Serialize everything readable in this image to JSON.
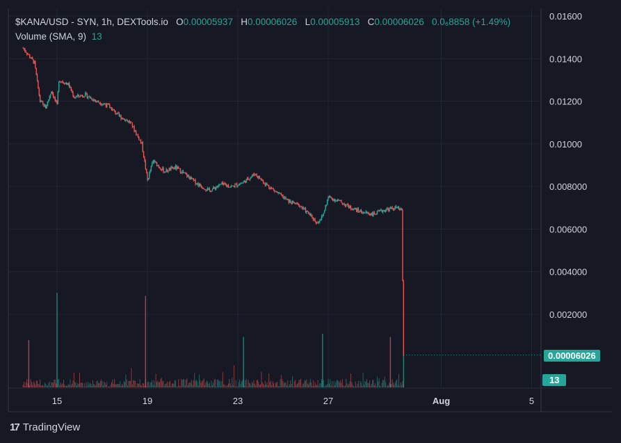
{
  "legend": {
    "symbol": "$KANA/USD - SYN, 1h, DEXTools.io",
    "o_label": "O",
    "o_value": "0.00005937",
    "h_label": "H",
    "h_value": "0.00006026",
    "l_label": "L",
    "l_value": "0.00005913",
    "c_label": "C",
    "c_value": "0.00006026",
    "change": "0.0₆8858 (+1.49%)",
    "volume_label": "Volume (SMA, 9)",
    "volume_value": "13"
  },
  "last_price_tag": "0.00006026",
  "last_volume_tag": "13",
  "branding": {
    "logo_text": "TradingView",
    "logo_mark": "17"
  },
  "colors": {
    "up": "#26a69a",
    "down": "#ef5350",
    "background": "#161823",
    "grid": "#232633"
  },
  "chart_data": {
    "type": "candlestick",
    "title": "$KANA/USD - SYN, 1h, DEXTools.io",
    "x_ticks": [
      "15",
      "19",
      "23",
      "27",
      "Aug",
      "5"
    ],
    "y_ticks": [
      "0.01600",
      "0.01400",
      "0.01200",
      "0.01000",
      "0.008000",
      "0.006000",
      "0.004000",
      "0.002000"
    ],
    "ylim": [
      0,
      0.0161
    ],
    "grid": true,
    "price_path": [
      [
        "Jul 13 12:00",
        0.0145
      ],
      [
        "Jul 14 00:00",
        0.0138
      ],
      [
        "Jul 14 06:00",
        0.012
      ],
      [
        "Jul 14 12:00",
        0.0117
      ],
      [
        "Jul 14 18:00",
        0.0125
      ],
      [
        "Jul 15 00:00",
        0.0118
      ],
      [
        "Jul 15 02:00",
        0.013
      ],
      [
        "Jul 15 12:00",
        0.0128
      ],
      [
        "Jul 15 18:00",
        0.0122
      ],
      [
        "Jul 16 06:00",
        0.0123
      ],
      [
        "Jul 16 18:00",
        0.012
      ],
      [
        "Jul 17 06:00",
        0.0118
      ],
      [
        "Jul 17 18:00",
        0.0113
      ],
      [
        "Jul 18 06:00",
        0.011
      ],
      [
        "Jul 18 18:00",
        0.01
      ],
      [
        "Jul 19 00:00",
        0.0083
      ],
      [
        "Jul 19 06:00",
        0.0092
      ],
      [
        "Jul 19 18:00",
        0.0087
      ],
      [
        "Jul 20 06:00",
        0.0089
      ],
      [
        "Jul 20 18:00",
        0.0085
      ],
      [
        "Jul 21 06:00",
        0.0081
      ],
      [
        "Jul 21 18:00",
        0.0078
      ],
      [
        "Jul 22 06:00",
        0.0081
      ],
      [
        "Jul 22 18:00",
        0.008
      ],
      [
        "Jul 23 06:00",
        0.0082
      ],
      [
        "Jul 23 18:00",
        0.0086
      ],
      [
        "Jul 24 06:00",
        0.0081
      ],
      [
        "Jul 24 18:00",
        0.0077
      ],
      [
        "Jul 25 06:00",
        0.0073
      ],
      [
        "Jul 25 18:00",
        0.0071
      ],
      [
        "Jul 26 06:00",
        0.0066
      ],
      [
        "Jul 26 12:00",
        0.0063
      ],
      [
        "Jul 26 18:00",
        0.0066
      ],
      [
        "Jul 27 00:00",
        0.0075
      ],
      [
        "Jul 27 12:00",
        0.0073
      ],
      [
        "Jul 28 00:00",
        0.007
      ],
      [
        "Jul 28 12:00",
        0.0068
      ],
      [
        "Jul 29 00:00",
        0.0067
      ],
      [
        "Jul 29 12:00",
        0.0069
      ],
      [
        "Jul 30 00:00",
        0.007
      ],
      [
        "Jul 30 06:00",
        0.0069
      ],
      [
        "Jul 30 08:00",
        6e-05
      ]
    ],
    "volume_spikes": [
      [
        "Jul 15 00:00",
        3000
      ],
      [
        "Jul 18 22:00",
        2900
      ],
      [
        "Jul 26 18:00",
        1700
      ],
      [
        "Jul 29 18:00",
        1600
      ],
      [
        "Jul 30 08:00",
        1700
      ],
      [
        "Jul 13 18:00",
        1500
      ],
      [
        "Jul 23 06:00",
        1600
      ]
    ],
    "last_price": 6.026e-05,
    "last_volume": 13
  }
}
